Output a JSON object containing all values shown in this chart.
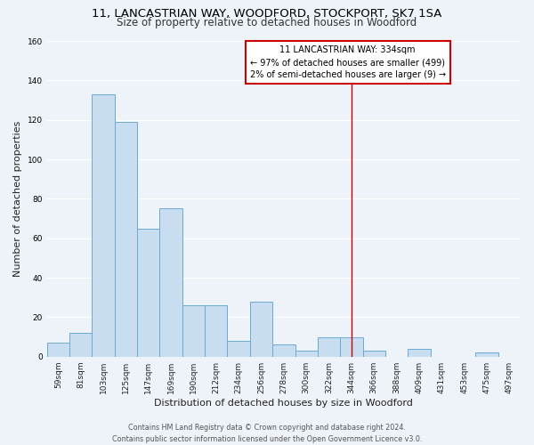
{
  "title1": "11, LANCASTRIAN WAY, WOODFORD, STOCKPORT, SK7 1SA",
  "title2": "Size of property relative to detached houses in Woodford",
  "xlabel": "Distribution of detached houses by size in Woodford",
  "ylabel": "Number of detached properties",
  "categories": [
    "59sqm",
    "81sqm",
    "103sqm",
    "125sqm",
    "147sqm",
    "169sqm",
    "190sqm",
    "212sqm",
    "234sqm",
    "256sqm",
    "278sqm",
    "300sqm",
    "322sqm",
    "344sqm",
    "366sqm",
    "388sqm",
    "409sqm",
    "431sqm",
    "453sqm",
    "475sqm",
    "497sqm"
  ],
  "values": [
    7,
    12,
    133,
    119,
    65,
    75,
    26,
    26,
    8,
    28,
    6,
    3,
    10,
    10,
    3,
    0,
    4,
    0,
    0,
    2,
    0
  ],
  "bar_color": "#c8ddf0",
  "bar_edge_color": "#6aaad4",
  "vline_x": 13,
  "vline_label": "11 LANCASTRIAN WAY: 334sqm",
  "annotation_line1": "← 97% of detached houses are smaller (499)",
  "annotation_line2": "2% of semi-detached houses are larger (9) →",
  "annotation_box_color": "#ffffff",
  "annotation_box_edge": "#cc0000",
  "ylim": [
    0,
    160
  ],
  "yticks": [
    0,
    20,
    40,
    60,
    80,
    100,
    120,
    140,
    160
  ],
  "footer1": "Contains HM Land Registry data © Crown copyright and database right 2024.",
  "footer2": "Contains public sector information licensed under the Open Government Licence v3.0.",
  "bg_color": "#eef2f9",
  "grid_color": "#ffffff",
  "title1_fontsize": 9.5,
  "title2_fontsize": 8.5,
  "xlabel_fontsize": 8,
  "ylabel_fontsize": 8,
  "tick_fontsize": 6.5,
  "footer_fontsize": 5.8,
  "annot_fontsize": 7.0
}
